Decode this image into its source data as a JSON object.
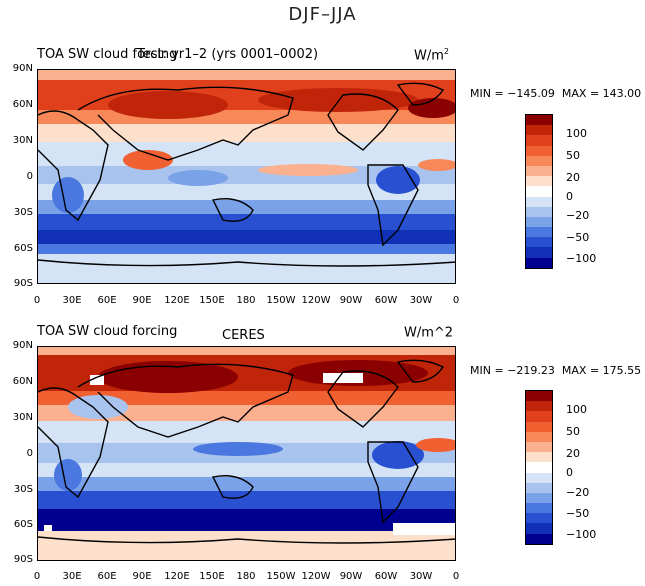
{
  "figure": {
    "title": "DJF–JJA"
  },
  "panels": [
    {
      "left_title": "TOA SW cloud forcing",
      "center_title": "Test: yr1–2 (yrs 0001–0002)",
      "units": "W/m",
      "units_sup": "2",
      "min_label": "MIN =",
      "min_value": "−145.09",
      "max_label": "MAX =",
      "max_value": "143.00"
    },
    {
      "left_title": "TOA SW cloud forcing",
      "center_title": "CERES",
      "units": "W/m^2",
      "units_sup": "",
      "min_label": "MIN =",
      "min_value": "−219.23",
      "max_label": "MAX =",
      "max_value": "175.55"
    }
  ],
  "lat_labels": [
    "90N",
    "60N",
    "30N",
    "0",
    "30S",
    "60S",
    "90S"
  ],
  "lon_labels": [
    "0",
    "30E",
    "60E",
    "90E",
    "120E",
    "150E",
    "180",
    "150W",
    "120W",
    "90W",
    "60W",
    "30W",
    "0"
  ],
  "colorbar": {
    "colors": [
      "#8b0000",
      "#c0250a",
      "#e0401c",
      "#f06030",
      "#f88858",
      "#fbb090",
      "#fde0cc",
      "#ffffff",
      "#d4e4f6",
      "#a8c4ee",
      "#7aa2e8",
      "#4a78e0",
      "#2850d0",
      "#1030b8",
      "#000090"
    ],
    "tick_labels": [
      "100",
      "50",
      "20",
      "0",
      "−20",
      "−50",
      "−100"
    ]
  }
}
